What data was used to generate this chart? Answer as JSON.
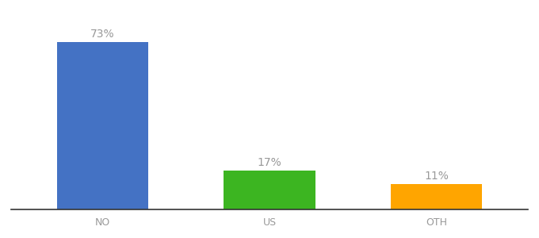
{
  "categories": [
    "NO",
    "US",
    "OTH"
  ],
  "values": [
    73,
    17,
    11
  ],
  "bar_colors": [
    "#4472C4",
    "#3CB521",
    "#FFA500"
  ],
  "labels": [
    "73%",
    "17%",
    "11%"
  ],
  "background_color": "#ffffff",
  "label_color": "#999999",
  "label_fontsize": 10,
  "tick_fontsize": 9,
  "ylim": [
    0,
    83
  ],
  "bar_width": 0.55,
  "x_positions": [
    1,
    2,
    3
  ]
}
